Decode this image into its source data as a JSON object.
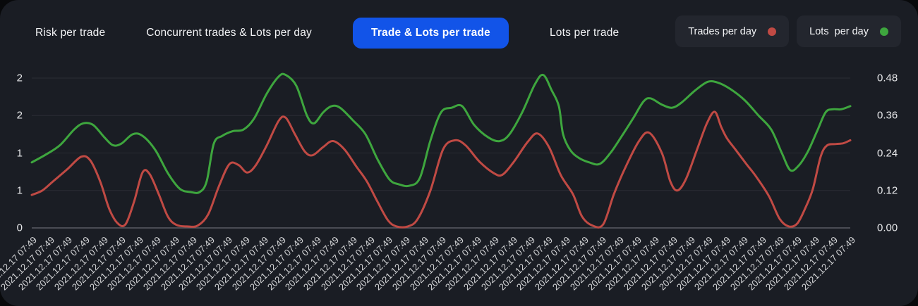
{
  "tabs": [
    {
      "label": "Risk per trade",
      "active": false
    },
    {
      "label": "Concurrent trades & Lots per day",
      "active": false
    },
    {
      "label": "Trade & Lots per trade",
      "active": true
    },
    {
      "label": "Lots per trade",
      "active": false
    }
  ],
  "legend": [
    {
      "label": "Trades per day",
      "color": "#c04a44"
    },
    {
      "label": "Lots  per day",
      "color": "#3ea63e"
    }
  ],
  "colors": {
    "card_background": "#1a1d24",
    "active_tab": "#1254e8",
    "gridline": "#2a2d34",
    "baseline": "#5a5d64",
    "red_series": "#c04a44",
    "green_series": "#3ea63e"
  },
  "chart_data": {
    "type": "line",
    "title": "",
    "grid": true,
    "legend_position": "top-right",
    "x_axis": {
      "tick_label": "2021.12.17 07:49",
      "count": 47,
      "labels": [
        "2021.12.17 07:49",
        "2021.12.17 07:49",
        "2021.12.17 07:49",
        "2021.12.17 07:49",
        "2021.12.17 07:49",
        "2021.12.17 07:49",
        "2021.12.17 07:49",
        "2021.12.17 07:49",
        "2021.12.17 07:49",
        "2021.12.17 07:49",
        "2021.12.17 07:49",
        "2021.12.17 07:49",
        "2021.12.17 07:49",
        "2021.12.17 07:49",
        "2021.12.17 07:49",
        "2021.12.17 07:49",
        "2021.12.17 07:49",
        "2021.12.17 07:49",
        "2021.12.17 07:49",
        "2021.12.17 07:49",
        "2021.12.17 07:49",
        "2021.12.17 07:49",
        "2021.12.17 07:49",
        "2021.12.17 07:49",
        "2021.12.17 07:49",
        "2021.12.17 07:49",
        "2021.12.17 07:49",
        "2021.12.17 07:49",
        "2021.12.17 07:49",
        "2021.12.17 07:49",
        "2021.12.17 07:49",
        "2021.12.17 07:49",
        "2021.12.17 07:49",
        "2021.12.17 07:49",
        "2021.12.17 07:49",
        "2021.12.17 07:49",
        "2021.12.17 07:49",
        "2021.12.17 07:49",
        "2021.12.17 07:49",
        "2021.12.17 07:49",
        "2021.12.17 07:49",
        "2021.12.17 07:49",
        "2021.12.17 07:49",
        "2021.12.17 07:49",
        "2021.12.17 07:49",
        "2021.12.17 07:49",
        "2021.12.17 07:49"
      ]
    },
    "y_left": {
      "ticks": [
        "2",
        "2",
        "1",
        "1",
        "0"
      ],
      "values": [
        2,
        1.5,
        1,
        0.5,
        0
      ],
      "range": [
        0,
        2
      ]
    },
    "y_right": {
      "ticks": [
        "0.48",
        "0.36",
        "0.24",
        "0.12",
        "0.00"
      ],
      "values": [
        0.48,
        0.36,
        0.24,
        0.12,
        0
      ],
      "range": [
        0,
        0.48
      ]
    },
    "series": [
      {
        "name": "Trades per day",
        "axis": "left",
        "color": "#c04a44",
        "points": [
          [
            45,
            0.44
          ],
          [
            60,
            0.5
          ],
          [
            75,
            0.62
          ],
          [
            95,
            0.78
          ],
          [
            115,
            0.95
          ],
          [
            128,
            0.9
          ],
          [
            142,
            0.62
          ],
          [
            155,
            0.25
          ],
          [
            167,
            0.06
          ],
          [
            178,
            0.05
          ],
          [
            190,
            0.35
          ],
          [
            202,
            0.74
          ],
          [
            212,
            0.72
          ],
          [
            225,
            0.45
          ],
          [
            238,
            0.15
          ],
          [
            250,
            0.04
          ],
          [
            265,
            0.02
          ],
          [
            280,
            0.03
          ],
          [
            295,
            0.18
          ],
          [
            310,
            0.55
          ],
          [
            325,
            0.85
          ],
          [
            338,
            0.84
          ],
          [
            350,
            0.74
          ],
          [
            362,
            0.83
          ],
          [
            378,
            1.1
          ],
          [
            395,
            1.43
          ],
          [
            405,
            1.47
          ],
          [
            418,
            1.25
          ],
          [
            432,
            1.02
          ],
          [
            443,
            0.97
          ],
          [
            458,
            1.08
          ],
          [
            472,
            1.16
          ],
          [
            488,
            1.05
          ],
          [
            505,
            0.82
          ],
          [
            520,
            0.62
          ],
          [
            535,
            0.35
          ],
          [
            550,
            0.1
          ],
          [
            562,
            0.02
          ],
          [
            578,
            0.02
          ],
          [
            592,
            0.12
          ],
          [
            610,
            0.5
          ],
          [
            628,
            1.05
          ],
          [
            645,
            1.17
          ],
          [
            660,
            1.1
          ],
          [
            680,
            0.88
          ],
          [
            700,
            0.73
          ],
          [
            712,
            0.71
          ],
          [
            728,
            0.88
          ],
          [
            748,
            1.15
          ],
          [
            762,
            1.26
          ],
          [
            778,
            1.08
          ],
          [
            795,
            0.7
          ],
          [
            812,
            0.45
          ],
          [
            825,
            0.15
          ],
          [
            840,
            0.03
          ],
          [
            855,
            0.05
          ],
          [
            870,
            0.45
          ],
          [
            885,
            0.78
          ],
          [
            905,
            1.15
          ],
          [
            920,
            1.27
          ],
          [
            938,
            1.0
          ],
          [
            950,
            0.62
          ],
          [
            960,
            0.5
          ],
          [
            972,
            0.65
          ],
          [
            988,
            1.05
          ],
          [
            1002,
            1.4
          ],
          [
            1013,
            1.55
          ],
          [
            1022,
            1.35
          ],
          [
            1030,
            1.2
          ],
          [
            1042,
            1.05
          ],
          [
            1058,
            0.85
          ],
          [
            1072,
            0.68
          ],
          [
            1090,
            0.42
          ],
          [
            1105,
            0.12
          ],
          [
            1118,
            0.02
          ],
          [
            1130,
            0.06
          ],
          [
            1142,
            0.28
          ],
          [
            1152,
            0.52
          ],
          [
            1163,
            0.95
          ],
          [
            1172,
            1.1
          ],
          [
            1185,
            1.12
          ],
          [
            1195,
            1.13
          ],
          [
            1205,
            1.17
          ]
        ]
      },
      {
        "name": "Lots per day",
        "axis": "right",
        "color": "#3ea63e",
        "points": [
          [
            45,
            0.21
          ],
          [
            65,
            0.235
          ],
          [
            85,
            0.265
          ],
          [
            105,
            0.315
          ],
          [
            118,
            0.335
          ],
          [
            132,
            0.33
          ],
          [
            148,
            0.29
          ],
          [
            160,
            0.265
          ],
          [
            172,
            0.27
          ],
          [
            188,
            0.3
          ],
          [
            202,
            0.295
          ],
          [
            220,
            0.25
          ],
          [
            238,
            0.175
          ],
          [
            255,
            0.125
          ],
          [
            270,
            0.115
          ],
          [
            283,
            0.115
          ],
          [
            293,
            0.15
          ],
          [
            303,
            0.27
          ],
          [
            315,
            0.295
          ],
          [
            330,
            0.31
          ],
          [
            345,
            0.315
          ],
          [
            360,
            0.35
          ],
          [
            378,
            0.43
          ],
          [
            395,
            0.485
          ],
          [
            405,
            0.49
          ],
          [
            420,
            0.455
          ],
          [
            435,
            0.36
          ],
          [
            445,
            0.335
          ],
          [
            458,
            0.37
          ],
          [
            470,
            0.39
          ],
          [
            482,
            0.385
          ],
          [
            500,
            0.345
          ],
          [
            518,
            0.3
          ],
          [
            535,
            0.22
          ],
          [
            552,
            0.155
          ],
          [
            565,
            0.14
          ],
          [
            580,
            0.135
          ],
          [
            595,
            0.16
          ],
          [
            610,
            0.28
          ],
          [
            625,
            0.37
          ],
          [
            640,
            0.385
          ],
          [
            655,
            0.39
          ],
          [
            672,
            0.33
          ],
          [
            692,
            0.29
          ],
          [
            708,
            0.278
          ],
          [
            722,
            0.3
          ],
          [
            740,
            0.37
          ],
          [
            758,
            0.46
          ],
          [
            770,
            0.49
          ],
          [
            782,
            0.44
          ],
          [
            792,
            0.39
          ],
          [
            798,
            0.3
          ],
          [
            808,
            0.25
          ],
          [
            820,
            0.225
          ],
          [
            835,
            0.21
          ],
          [
            850,
            0.205
          ],
          [
            865,
            0.24
          ],
          [
            880,
            0.29
          ],
          [
            897,
            0.35
          ],
          [
            912,
            0.405
          ],
          [
            922,
            0.415
          ],
          [
            938,
            0.395
          ],
          [
            952,
            0.385
          ],
          [
            965,
            0.4
          ],
          [
            985,
            0.44
          ],
          [
            1003,
            0.468
          ],
          [
            1018,
            0.465
          ],
          [
            1035,
            0.445
          ],
          [
            1055,
            0.41
          ],
          [
            1075,
            0.36
          ],
          [
            1093,
            0.315
          ],
          [
            1108,
            0.24
          ],
          [
            1120,
            0.185
          ],
          [
            1132,
            0.2
          ],
          [
            1145,
            0.245
          ],
          [
            1158,
            0.31
          ],
          [
            1170,
            0.37
          ],
          [
            1180,
            0.38
          ],
          [
            1192,
            0.38
          ],
          [
            1205,
            0.39
          ]
        ]
      }
    ]
  }
}
